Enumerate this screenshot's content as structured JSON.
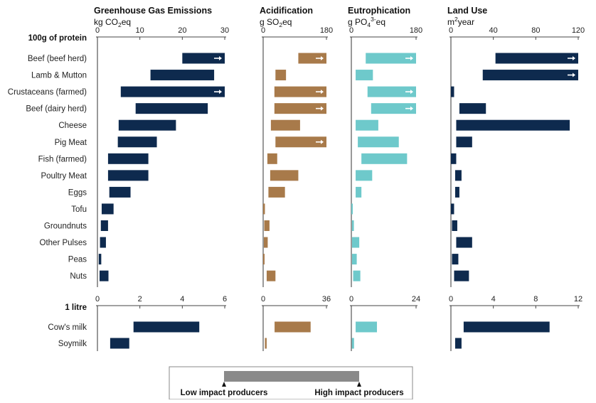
{
  "sections": {
    "protein": {
      "label": "100g of protein",
      "categories": [
        "Beef (beef herd)",
        "Lamb & Mutton",
        "Crustaceans (farmed)",
        "Beef (dairy herd)",
        "Cheese",
        "Pig Meat",
        "Fish (farmed)",
        "Poultry Meat",
        "Eggs",
        "Tofu",
        "Groundnuts",
        "Other Pulses",
        "Peas",
        "Nuts"
      ]
    },
    "milk": {
      "label": "1 litre",
      "categories": [
        "Cow's milk",
        "Soymilk"
      ]
    }
  },
  "legend": {
    "low_label": "Low impact producers",
    "high_label": "High impact producers"
  },
  "chart_data": [
    {
      "type": "bar",
      "orientation": "horizontal",
      "title": "Greenhouse Gas Emissions",
      "unit": "kg CO₂eq",
      "unit_parts": {
        "pre": "kg CO",
        "sub": "2",
        "sup": "",
        "post": "eq"
      },
      "color": "#0e2a4e",
      "protein": {
        "xlim": [
          0,
          30
        ],
        "ticks": [
          "0",
          "10",
          "20",
          "30"
        ],
        "ranges": [
          [
            20,
            30
          ],
          [
            12.5,
            27.5
          ],
          [
            5.5,
            30
          ],
          [
            9,
            26
          ],
          [
            5,
            18.5
          ],
          [
            4.8,
            14
          ],
          [
            2.5,
            12
          ],
          [
            2.5,
            12
          ],
          [
            2.8,
            7.8
          ],
          [
            1,
            3.8
          ],
          [
            0.8,
            2.5
          ],
          [
            0.6,
            2
          ],
          [
            0.3,
            0.9
          ],
          [
            0.5,
            2.6
          ]
        ],
        "overflow": [
          true,
          false,
          true,
          false,
          false,
          false,
          false,
          false,
          false,
          false,
          false,
          false,
          false,
          false
        ]
      },
      "milk": {
        "xlim": [
          0,
          6
        ],
        "ticks": [
          "0",
          "2",
          "4",
          "6"
        ],
        "ranges": [
          [
            1.7,
            4.8
          ],
          [
            0.6,
            1.5
          ]
        ],
        "overflow": [
          false,
          false
        ]
      }
    },
    {
      "type": "bar",
      "orientation": "horizontal",
      "title": "Acidification",
      "unit": "g SO₂eq",
      "unit_parts": {
        "pre": "g SO",
        "sub": "2",
        "sup": "",
        "post": "eq"
      },
      "color": "#a87a4a",
      "protein": {
        "xlim": [
          0,
          180
        ],
        "ticks": [
          "0",
          "180"
        ],
        "ranges": [
          [
            100,
            180
          ],
          [
            35,
            65
          ],
          [
            32,
            180
          ],
          [
            32,
            180
          ],
          [
            22,
            105
          ],
          [
            35,
            180
          ],
          [
            12,
            40
          ],
          [
            20,
            100
          ],
          [
            15,
            62
          ],
          [
            0,
            5
          ],
          [
            3,
            18
          ],
          [
            2,
            13
          ],
          [
            0,
            4
          ],
          [
            10,
            35
          ]
        ],
        "overflow": [
          true,
          false,
          true,
          true,
          false,
          true,
          false,
          false,
          false,
          false,
          false,
          false,
          false,
          false
        ]
      },
      "milk": {
        "xlim": [
          0,
          36
        ],
        "ticks": [
          "0",
          "36"
        ],
        "ranges": [
          [
            6.5,
            27
          ],
          [
            1,
            2
          ]
        ],
        "overflow": [
          false,
          false
        ]
      }
    },
    {
      "type": "bar",
      "orientation": "horizontal",
      "title": "Eutrophication",
      "unit": "g PO₄³⁻eq",
      "unit_parts": {
        "pre": "g PO",
        "sub": "4",
        "sup": "3-",
        "post": "eq"
      },
      "color": "#6ec9cb",
      "protein": {
        "xlim": [
          0,
          180
        ],
        "ticks": [
          "0",
          "180"
        ],
        "ranges": [
          [
            40,
            180
          ],
          [
            12,
            60
          ],
          [
            45,
            180
          ],
          [
            55,
            180
          ],
          [
            12,
            75
          ],
          [
            18,
            132
          ],
          [
            28,
            155
          ],
          [
            12,
            58
          ],
          [
            12,
            28
          ],
          [
            0,
            4
          ],
          [
            2,
            7
          ],
          [
            2,
            22
          ],
          [
            2,
            15
          ],
          [
            5,
            25
          ]
        ],
        "overflow": [
          true,
          false,
          true,
          true,
          false,
          false,
          false,
          false,
          false,
          false,
          false,
          false,
          false,
          false
        ]
      },
      "milk": {
        "xlim": [
          0,
          24
        ],
        "ticks": [
          "0",
          "24"
        ],
        "ranges": [
          [
            1.6,
            9.5
          ],
          [
            0.2,
            1
          ]
        ],
        "overflow": [
          false,
          false
        ]
      }
    },
    {
      "type": "bar",
      "orientation": "horizontal",
      "title": "Land Use",
      "unit": "m²year",
      "unit_parts": {
        "pre": "m",
        "sub": "",
        "sup": "2",
        "post": "year"
      },
      "color": "#0e2a4e",
      "protein": {
        "xlim": [
          0,
          120
        ],
        "ticks": [
          "0",
          "40",
          "80",
          "120"
        ],
        "ranges": [
          [
            42,
            120
          ],
          [
            30,
            120
          ],
          [
            0,
            3
          ],
          [
            8,
            33
          ],
          [
            5,
            112
          ],
          [
            5,
            20
          ],
          [
            0,
            5
          ],
          [
            4,
            10
          ],
          [
            4,
            8
          ],
          [
            0,
            3
          ],
          [
            1,
            6
          ],
          [
            5,
            20
          ],
          [
            1,
            7
          ],
          [
            3,
            17
          ]
        ],
        "overflow": [
          true,
          true,
          false,
          false,
          false,
          false,
          false,
          false,
          false,
          false,
          false,
          false,
          false,
          false
        ]
      },
      "milk": {
        "xlim": [
          0,
          12
        ],
        "ticks": [
          "0",
          "4",
          "8",
          "12"
        ],
        "ranges": [
          [
            1.2,
            9.3
          ],
          [
            0.4,
            1
          ]
        ],
        "overflow": [
          false,
          false
        ]
      }
    }
  ]
}
